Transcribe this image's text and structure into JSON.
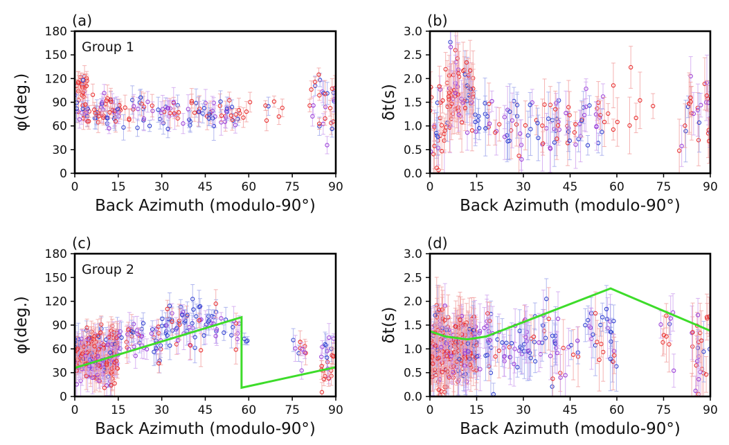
{
  "chart_data": [
    {
      "panel": "(a)",
      "type": "scatter",
      "title": "Group 1",
      "xlabel": "Back Azimuth (modulo-90°)",
      "ylabel": "φ(deg.)",
      "xlim": [
        0,
        90
      ],
      "ylim": [
        0,
        180
      ],
      "xticks": [
        0,
        15,
        30,
        45,
        60,
        75,
        90
      ],
      "yticks": [
        0,
        30,
        60,
        90,
        120,
        150,
        180
      ],
      "series_colors": [
        "#e83030",
        "#2f3fcf",
        "#9a40d8"
      ],
      "clusters": [
        {
          "xr": [
            0,
            5
          ],
          "yc": 112,
          "ys": 8,
          "n": 22,
          "err": 10,
          "mix": [
            0.9,
            0.05,
            0.05
          ]
        },
        {
          "xr": [
            0,
            14
          ],
          "yc": 78,
          "ys": 10,
          "n": 60,
          "err": 12,
          "mix": [
            0.45,
            0.25,
            0.3
          ]
        },
        {
          "xr": [
            14,
            57
          ],
          "yc": 78,
          "ys": 10,
          "n": 95,
          "err": 13,
          "mix": [
            0.3,
            0.35,
            0.35
          ]
        },
        {
          "xr": [
            57,
            72
          ],
          "yc": 85,
          "ys": 9,
          "n": 9,
          "err": 9,
          "mix": [
            0.95,
            0.05,
            0
          ]
        },
        {
          "xr": [
            81,
            90
          ],
          "yc": 110,
          "ys": 9,
          "n": 14,
          "err": 12,
          "mix": [
            0.6,
            0.2,
            0.2
          ]
        },
        {
          "xr": [
            81,
            90
          ],
          "yc": 70,
          "ys": 16,
          "n": 14,
          "err": 14,
          "mix": [
            0.5,
            0.2,
            0.3
          ]
        }
      ]
    },
    {
      "panel": "(b)",
      "type": "scatter",
      "title": "",
      "xlabel": "Back Azimuth (modulo-90°)",
      "ylabel": "δt(s)",
      "xlim": [
        0,
        90
      ],
      "ylim": [
        0,
        3
      ],
      "xticks": [
        0,
        15,
        30,
        45,
        60,
        75,
        90
      ],
      "yticks": [
        "0.0",
        "0.5",
        "1.0",
        "1.5",
        "2.0",
        "2.5",
        "3.0"
      ],
      "series_colors": [
        "#e83030",
        "#2f3fcf",
        "#9a40d8"
      ],
      "clusters": [
        {
          "xr": [
            0,
            5
          ],
          "yc": 0.9,
          "ys": 0.45,
          "n": 30,
          "err": 0.35,
          "mix": [
            0.7,
            0.1,
            0.2
          ]
        },
        {
          "xr": [
            5,
            14
          ],
          "yc": 1.7,
          "ys": 0.4,
          "n": 70,
          "err": 0.45,
          "mix": [
            0.65,
            0.1,
            0.25
          ]
        },
        {
          "xr": [
            14,
            56
          ],
          "yc": 1.05,
          "ys": 0.3,
          "n": 95,
          "err": 0.4,
          "mix": [
            0.3,
            0.35,
            0.35
          ]
        },
        {
          "xr": [
            56,
            72
          ],
          "yc": 1.4,
          "ys": 0.3,
          "n": 10,
          "err": 0.4,
          "mix": [
            1,
            0,
            0
          ]
        },
        {
          "xr": [
            80,
            90
          ],
          "yc": 1.15,
          "ys": 0.4,
          "n": 28,
          "err": 0.45,
          "mix": [
            0.55,
            0.15,
            0.3
          ]
        }
      ]
    },
    {
      "panel": "(c)",
      "type": "scatter",
      "title": "Group 2",
      "xlabel": "Back Azimuth (modulo-90°)",
      "ylabel": "φ(deg.)",
      "xlim": [
        0,
        90
      ],
      "ylim": [
        0,
        180
      ],
      "xticks": [
        0,
        15,
        30,
        45,
        60,
        75,
        90
      ],
      "yticks": [
        0,
        30,
        60,
        90,
        120,
        150,
        180
      ],
      "series_colors": [
        "#e83030",
        "#2f3fcf",
        "#9a40d8"
      ],
      "model_line": {
        "color": "#3ddc2a",
        "x": [
          0,
          57.5,
          57.5,
          90
        ],
        "y": [
          36,
          100,
          11,
          37
        ]
      },
      "clusters": [
        {
          "xr": [
            0,
            15
          ],
          "yc": 50,
          "ys": 16,
          "n": 260,
          "err": 14,
          "mix": [
            0.55,
            0.15,
            0.3
          ]
        },
        {
          "xr": [
            15,
            30
          ],
          "yc": 72,
          "ys": 12,
          "n": 45,
          "err": 14,
          "mix": [
            0.25,
            0.3,
            0.45
          ]
        },
        {
          "xr": [
            30,
            57
          ],
          "yc": 90,
          "ys": 15,
          "n": 75,
          "err": 14,
          "mix": [
            0.2,
            0.5,
            0.3
          ]
        },
        {
          "xr": [
            57,
            60
          ],
          "yc": 68,
          "ys": 4,
          "n": 3,
          "err": 5,
          "mix": [
            0,
            1,
            0
          ]
        },
        {
          "xr": [
            74,
            80
          ],
          "yc": 55,
          "ys": 10,
          "n": 10,
          "err": 12,
          "mix": [
            0.5,
            0.2,
            0.3
          ]
        },
        {
          "xr": [
            85,
            90
          ],
          "yc": 45,
          "ys": 14,
          "n": 24,
          "err": 12,
          "mix": [
            0.5,
            0.2,
            0.3
          ]
        }
      ]
    },
    {
      "panel": "(d)",
      "type": "scatter",
      "title": "",
      "xlabel": "Back Azimuth (modulo-90°)",
      "ylabel": "δt(s)",
      "xlim": [
        0,
        90
      ],
      "ylim": [
        0,
        3
      ],
      "xticks": [
        0,
        15,
        30,
        45,
        60,
        75,
        90
      ],
      "yticks": [
        "0.0",
        "0.5",
        "1.0",
        "1.5",
        "2.0",
        "2.5",
        "3.0"
      ],
      "series_colors": [
        "#e83030",
        "#2f3fcf",
        "#9a40d8"
      ],
      "model_line": {
        "color": "#3ddc2a",
        "x": [
          0,
          5,
          12,
          18,
          58,
          90
        ],
        "y": [
          1.37,
          1.26,
          1.2,
          1.26,
          2.27,
          1.38
        ]
      },
      "clusters": [
        {
          "xr": [
            0,
            15
          ],
          "yc": 1.0,
          "ys": 0.4,
          "n": 260,
          "err": 0.4,
          "mix": [
            0.55,
            0.15,
            0.3
          ]
        },
        {
          "xr": [
            15,
            30
          ],
          "yc": 1.1,
          "ys": 0.35,
          "n": 45,
          "err": 0.4,
          "mix": [
            0.25,
            0.3,
            0.45
          ]
        },
        {
          "xr": [
            30,
            60
          ],
          "yc": 1.1,
          "ys": 0.35,
          "n": 75,
          "err": 0.45,
          "mix": [
            0.2,
            0.5,
            0.3
          ]
        },
        {
          "xr": [
            74,
            80
          ],
          "yc": 1.2,
          "ys": 0.35,
          "n": 10,
          "err": 0.4,
          "mix": [
            0.5,
            0.2,
            0.3
          ]
        },
        {
          "xr": [
            84,
            90
          ],
          "yc": 1.0,
          "ys": 0.45,
          "n": 25,
          "err": 0.45,
          "mix": [
            0.5,
            0.2,
            0.3
          ]
        }
      ]
    }
  ]
}
